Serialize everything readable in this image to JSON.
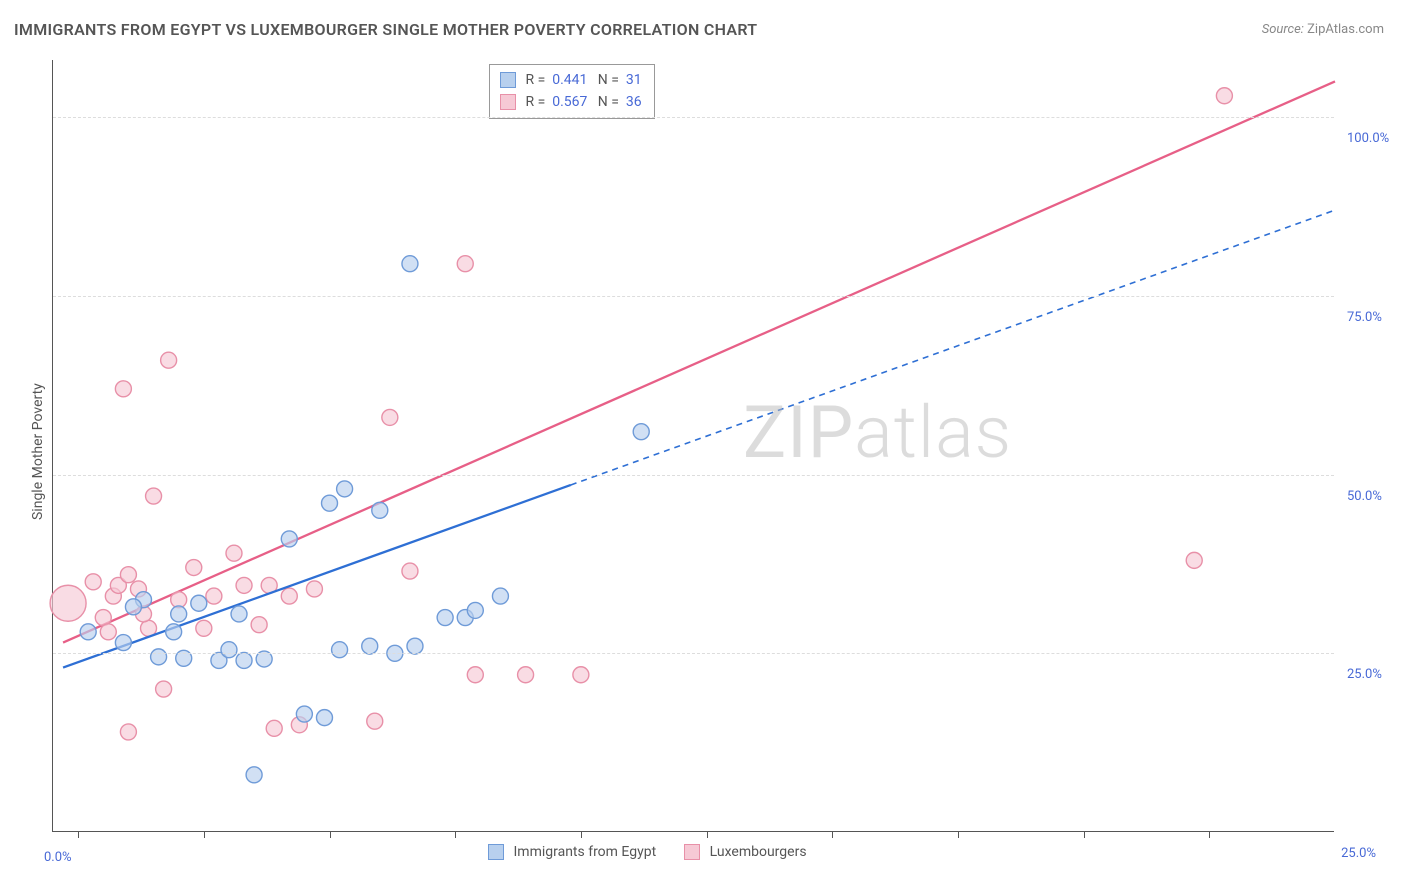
{
  "title": "IMMIGRANTS FROM EGYPT VS LUXEMBOURGER SINGLE MOTHER POVERTY CORRELATION CHART",
  "source_label": "Source:",
  "source_value": "ZipAtlas.com",
  "watermark": "ZIPatlas",
  "y_axis_title": "Single Mother Poverty",
  "chart": {
    "type": "scatter",
    "xlim": [
      -0.5,
      25.0
    ],
    "ylim": [
      0.0,
      108.0
    ],
    "x_ticks": [
      0.0,
      2.5,
      5.0,
      7.5,
      10.0,
      12.5,
      15.0,
      17.5,
      20.0,
      22.5
    ],
    "y_gridlines": [
      25.0,
      50.0,
      75.0,
      100.0
    ],
    "y_tick_labels": [
      "25.0%",
      "50.0%",
      "75.0%",
      "100.0%"
    ],
    "x_tick_right_label": "25.0%",
    "x_origin_label": "0.0%",
    "background_color": "#ffffff",
    "grid_color": "#dddddd",
    "grid_dash": "4,4",
    "axis_color": "#555555",
    "point_radius": 8,
    "point_radius_large": 18,
    "series": [
      {
        "name": "Immigrants from Egypt",
        "color_stroke": "#6f9bd8",
        "color_fill": "#b8d0ee",
        "fill_opacity": 0.65,
        "line_color": "#2e6fd4",
        "line_dash": "6,5",
        "line_width": 1.6,
        "R": "0.441",
        "N": "31",
        "trend": {
          "x1": -0.3,
          "y1": 23.0,
          "x2": 25.0,
          "y2": 87.0
        },
        "solid_until_x": 9.8,
        "points": [
          {
            "x": 0.2,
            "y": 28.0
          },
          {
            "x": 0.9,
            "y": 26.5
          },
          {
            "x": 1.3,
            "y": 32.5
          },
          {
            "x": 1.6,
            "y": 24.5
          },
          {
            "x": 1.1,
            "y": 31.5
          },
          {
            "x": 1.9,
            "y": 28.0
          },
          {
            "x": 2.1,
            "y": 24.3
          },
          {
            "x": 2.4,
            "y": 32.0
          },
          {
            "x": 2.8,
            "y": 24.0
          },
          {
            "x": 3.3,
            "y": 24.0
          },
          {
            "x": 3.2,
            "y": 30.5
          },
          {
            "x": 3.7,
            "y": 24.2
          },
          {
            "x": 3.5,
            "y": 8.0
          },
          {
            "x": 4.2,
            "y": 41.0
          },
          {
            "x": 4.5,
            "y": 16.5
          },
          {
            "x": 4.9,
            "y": 16.0
          },
          {
            "x": 5.0,
            "y": 46.0
          },
          {
            "x": 5.2,
            "y": 25.5
          },
          {
            "x": 5.3,
            "y": 48.0
          },
          {
            "x": 5.8,
            "y": 26.0
          },
          {
            "x": 6.0,
            "y": 45.0
          },
          {
            "x": 6.3,
            "y": 25.0
          },
          {
            "x": 6.7,
            "y": 26.0
          },
          {
            "x": 6.6,
            "y": 79.5
          },
          {
            "x": 7.3,
            "y": 30.0
          },
          {
            "x": 7.7,
            "y": 30.0
          },
          {
            "x": 7.9,
            "y": 31.0
          },
          {
            "x": 8.4,
            "y": 33.0
          },
          {
            "x": 11.2,
            "y": 56.0
          },
          {
            "x": 3.0,
            "y": 25.5
          },
          {
            "x": 2.0,
            "y": 30.5
          }
        ]
      },
      {
        "name": "Luxembourgers",
        "color_stroke": "#e890a8",
        "color_fill": "#f6c9d5",
        "fill_opacity": 0.65,
        "line_color": "#e75f87",
        "line_dash": null,
        "line_width": 2.3,
        "R": "0.567",
        "N": "36",
        "trend": {
          "x1": -0.3,
          "y1": 26.5,
          "x2": 25.0,
          "y2": 105.0
        },
        "points": [
          {
            "x": -0.2,
            "y": 32.0,
            "r": 18
          },
          {
            "x": 0.3,
            "y": 35.0
          },
          {
            "x": 0.5,
            "y": 30.0
          },
          {
            "x": 0.7,
            "y": 33.0
          },
          {
            "x": 0.6,
            "y": 28.0
          },
          {
            "x": 0.8,
            "y": 34.5
          },
          {
            "x": 1.0,
            "y": 36.0
          },
          {
            "x": 0.9,
            "y": 62.0
          },
          {
            "x": 1.5,
            "y": 47.0
          },
          {
            "x": 1.4,
            "y": 28.5
          },
          {
            "x": 1.2,
            "y": 34.0
          },
          {
            "x": 1.0,
            "y": 14.0
          },
          {
            "x": 1.7,
            "y": 20.0
          },
          {
            "x": 1.8,
            "y": 66.0
          },
          {
            "x": 2.3,
            "y": 37.0
          },
          {
            "x": 2.7,
            "y": 33.0
          },
          {
            "x": 2.5,
            "y": 28.5
          },
          {
            "x": 3.1,
            "y": 39.0
          },
          {
            "x": 3.3,
            "y": 34.5
          },
          {
            "x": 3.6,
            "y": 29.0
          },
          {
            "x": 3.8,
            "y": 34.5
          },
          {
            "x": 3.9,
            "y": 14.5
          },
          {
            "x": 4.2,
            "y": 33.0
          },
          {
            "x": 4.4,
            "y": 15.0
          },
          {
            "x": 5.9,
            "y": 15.5
          },
          {
            "x": 6.2,
            "y": 58.0
          },
          {
            "x": 6.6,
            "y": 36.5
          },
          {
            "x": 7.7,
            "y": 79.5
          },
          {
            "x": 7.9,
            "y": 22.0
          },
          {
            "x": 8.9,
            "y": 22.0
          },
          {
            "x": 10.0,
            "y": 22.0
          },
          {
            "x": 22.2,
            "y": 38.0
          },
          {
            "x": 22.8,
            "y": 103.0
          },
          {
            "x": 2.0,
            "y": 32.5
          },
          {
            "x": 1.3,
            "y": 30.5
          },
          {
            "x": 4.7,
            "y": 34.0
          }
        ]
      }
    ]
  },
  "legend_top": {
    "rows": [
      {
        "swatch_fill": "#b8d0ee",
        "swatch_stroke": "#6f9bd8",
        "R": "0.441",
        "N": "31"
      },
      {
        "swatch_fill": "#f6c9d5",
        "swatch_stroke": "#e890a8",
        "R": "0.567",
        "N": "36"
      }
    ]
  },
  "legend_bottom": {
    "items": [
      {
        "swatch_fill": "#b8d0ee",
        "swatch_stroke": "#6f9bd8",
        "label": "Immigrants from Egypt"
      },
      {
        "swatch_fill": "#f6c9d5",
        "swatch_stroke": "#e890a8",
        "label": "Luxembourgers"
      }
    ]
  }
}
